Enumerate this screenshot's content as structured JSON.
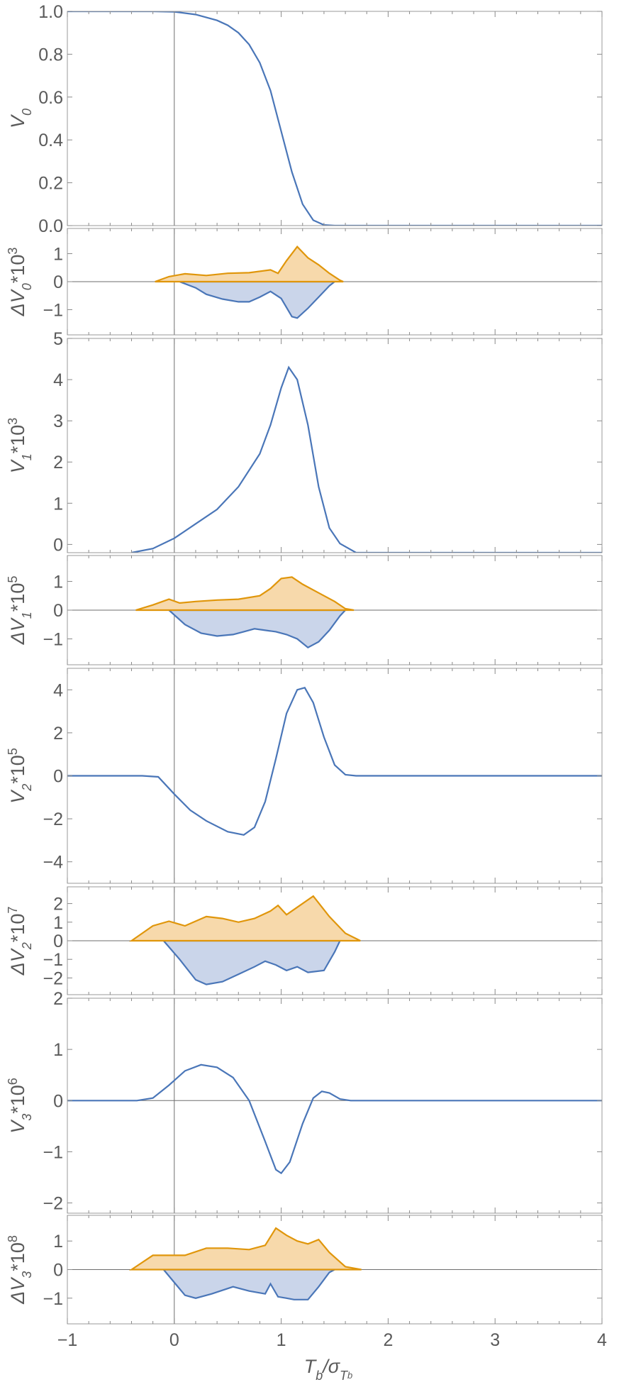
{
  "chart_data": {
    "type": "line",
    "xlabel": "T_b/σ_T_b",
    "xlim": [
      -1,
      4
    ],
    "xticks": [
      "−1",
      "0",
      "1",
      "2",
      "3",
      "4"
    ],
    "vertical_reference_x": 0,
    "colors": {
      "main": "#4a76b8",
      "upper": "#e0960b",
      "upper_fill": "#f7d9ab",
      "lower_fill": "#cad5ea"
    },
    "panels": [
      {
        "kind": "main",
        "ylabel": {
          "base": "V",
          "sub": "0",
          "mult": "",
          "exp": ""
        },
        "ylim": [
          0,
          1
        ],
        "yticks": [
          {
            "v": 0,
            "t": "0.0"
          },
          {
            "v": 0.2,
            "t": "0.2"
          },
          {
            "v": 0.4,
            "t": "0.4"
          },
          {
            "v": 0.6,
            "t": "0.6"
          },
          {
            "v": 0.8,
            "t": "0.8"
          },
          {
            "v": 1.0,
            "t": "1.0"
          }
        ],
        "zero_line": false,
        "series": [
          {
            "name": "V0",
            "points": [
              [
                -1,
                1
              ],
              [
                -0.5,
                1
              ],
              [
                -0.2,
                1
              ],
              [
                0,
                0.998
              ],
              [
                0.2,
                0.985
              ],
              [
                0.4,
                0.958
              ],
              [
                0.5,
                0.935
              ],
              [
                0.6,
                0.9
              ],
              [
                0.7,
                0.845
              ],
              [
                0.8,
                0.76
              ],
              [
                0.9,
                0.63
              ],
              [
                1.0,
                0.44
              ],
              [
                1.1,
                0.25
              ],
              [
                1.2,
                0.1
              ],
              [
                1.3,
                0.025
              ],
              [
                1.4,
                0.003
              ],
              [
                1.5,
                0
              ],
              [
                2,
                0
              ],
              [
                4,
                0
              ]
            ]
          }
        ]
      },
      {
        "kind": "delta",
        "ylabel": {
          "base": "ΔV",
          "sub": "0",
          "mult": "*10",
          "exp": "3"
        },
        "ylim": [
          -1.9,
          1.9
        ],
        "yticks": [
          {
            "v": -1,
            "t": "−1"
          },
          {
            "v": 0,
            "t": "0"
          },
          {
            "v": 1,
            "t": "1"
          }
        ],
        "zero_line": true,
        "upper": [
          [
            -0.18,
            0
          ],
          [
            -0.05,
            0.18
          ],
          [
            0.1,
            0.28
          ],
          [
            0.3,
            0.22
          ],
          [
            0.5,
            0.3
          ],
          [
            0.7,
            0.32
          ],
          [
            0.9,
            0.42
          ],
          [
            0.97,
            0.3
          ],
          [
            1.05,
            0.75
          ],
          [
            1.15,
            1.25
          ],
          [
            1.25,
            0.85
          ],
          [
            1.35,
            0.6
          ],
          [
            1.45,
            0.3
          ],
          [
            1.55,
            0.05
          ],
          [
            1.58,
            0
          ]
        ],
        "lower": [
          [
            0.05,
            0
          ],
          [
            0.2,
            -0.22
          ],
          [
            0.3,
            -0.45
          ],
          [
            0.45,
            -0.62
          ],
          [
            0.6,
            -0.72
          ],
          [
            0.7,
            -0.72
          ],
          [
            0.8,
            -0.55
          ],
          [
            0.9,
            -0.35
          ],
          [
            1.0,
            -0.6
          ],
          [
            1.1,
            -1.25
          ],
          [
            1.15,
            -1.3
          ],
          [
            1.25,
            -0.95
          ],
          [
            1.35,
            -0.55
          ],
          [
            1.45,
            -0.15
          ],
          [
            1.5,
            0
          ]
        ]
      },
      {
        "kind": "main",
        "ylabel": {
          "base": "V",
          "sub": "1",
          "mult": "*10",
          "exp": "3"
        },
        "ylim": [
          -0.2,
          5
        ],
        "yticks": [
          {
            "v": 0,
            "t": "0"
          },
          {
            "v": 1,
            "t": "1"
          },
          {
            "v": 2,
            "t": "2"
          },
          {
            "v": 3,
            "t": "3"
          },
          {
            "v": 4,
            "t": "4"
          },
          {
            "v": 5,
            "t": "5"
          }
        ],
        "zero_line": false,
        "series": [
          {
            "name": "V1",
            "points": [
              [
                -0.4,
                -0.2
              ],
              [
                -0.2,
                -0.1
              ],
              [
                0,
                0.15
              ],
              [
                0.2,
                0.5
              ],
              [
                0.4,
                0.85
              ],
              [
                0.6,
                1.4
              ],
              [
                0.8,
                2.2
              ],
              [
                0.9,
                2.9
              ],
              [
                1.0,
                3.8
              ],
              [
                1.07,
                4.3
              ],
              [
                1.15,
                4.0
              ],
              [
                1.25,
                2.9
              ],
              [
                1.35,
                1.4
              ],
              [
                1.45,
                0.4
              ],
              [
                1.55,
                0.02
              ],
              [
                1.7,
                -0.2
              ],
              [
                4,
                -0.2
              ]
            ]
          }
        ]
      },
      {
        "kind": "delta",
        "ylabel": {
          "base": "ΔV",
          "sub": "1",
          "mult": "*10",
          "exp": "5"
        },
        "ylim": [
          -1.9,
          1.9
        ],
        "yticks": [
          {
            "v": -1,
            "t": "−1"
          },
          {
            "v": 0,
            "t": "0"
          },
          {
            "v": 1,
            "t": "1"
          }
        ],
        "zero_line": true,
        "upper": [
          [
            -0.36,
            0
          ],
          [
            -0.2,
            0.18
          ],
          [
            -0.05,
            0.38
          ],
          [
            0.05,
            0.25
          ],
          [
            0.2,
            0.3
          ],
          [
            0.4,
            0.35
          ],
          [
            0.6,
            0.38
          ],
          [
            0.8,
            0.5
          ],
          [
            0.9,
            0.75
          ],
          [
            1.0,
            1.1
          ],
          [
            1.1,
            1.15
          ],
          [
            1.2,
            0.9
          ],
          [
            1.35,
            0.6
          ],
          [
            1.5,
            0.3
          ],
          [
            1.6,
            0.05
          ],
          [
            1.68,
            0
          ]
        ],
        "lower": [
          [
            -0.05,
            0
          ],
          [
            0.1,
            -0.5
          ],
          [
            0.25,
            -0.8
          ],
          [
            0.4,
            -0.9
          ],
          [
            0.55,
            -0.85
          ],
          [
            0.65,
            -0.75
          ],
          [
            0.75,
            -0.65
          ],
          [
            0.85,
            -0.7
          ],
          [
            0.95,
            -0.75
          ],
          [
            1.05,
            -0.85
          ],
          [
            1.15,
            -1.0
          ],
          [
            1.25,
            -1.3
          ],
          [
            1.35,
            -1.1
          ],
          [
            1.45,
            -0.7
          ],
          [
            1.55,
            -0.2
          ],
          [
            1.6,
            0
          ]
        ]
      },
      {
        "kind": "main",
        "ylabel": {
          "base": "V",
          "sub": "2",
          "mult": "*10",
          "exp": "5"
        },
        "ylim": [
          -5,
          5
        ],
        "yticks": [
          {
            "v": -4,
            "t": "−4"
          },
          {
            "v": -2,
            "t": "−2"
          },
          {
            "v": 0,
            "t": "0"
          },
          {
            "v": 2,
            "t": "2"
          },
          {
            "v": 4,
            "t": "4"
          }
        ],
        "zero_line": false,
        "series": [
          {
            "name": "V2",
            "points": [
              [
                -1,
                0
              ],
              [
                -0.3,
                0
              ],
              [
                -0.15,
                -0.05
              ],
              [
                0,
                -0.85
              ],
              [
                0.15,
                -1.6
              ],
              [
                0.3,
                -2.1
              ],
              [
                0.5,
                -2.6
              ],
              [
                0.65,
                -2.75
              ],
              [
                0.75,
                -2.4
              ],
              [
                0.85,
                -1.2
              ],
              [
                0.95,
                0.8
              ],
              [
                1.05,
                2.9
              ],
              [
                1.15,
                4.0
              ],
              [
                1.22,
                4.1
              ],
              [
                1.3,
                3.4
              ],
              [
                1.4,
                1.8
              ],
              [
                1.5,
                0.5
              ],
              [
                1.6,
                0.05
              ],
              [
                1.7,
                0
              ],
              [
                4,
                0
              ]
            ]
          }
        ]
      },
      {
        "kind": "delta",
        "ylabel": {
          "base": "ΔV",
          "sub": "2",
          "mult": "*10",
          "exp": "7"
        },
        "ylim": [
          -2.9,
          2.9
        ],
        "yticks": [
          {
            "v": -2,
            "t": "−2"
          },
          {
            "v": -1,
            "t": "−1"
          },
          {
            "v": 0,
            "t": "0"
          },
          {
            "v": 1,
            "t": "1"
          },
          {
            "v": 2,
            "t": "2"
          }
        ],
        "zero_line": true,
        "upper": [
          [
            -0.4,
            0
          ],
          [
            -0.2,
            0.8
          ],
          [
            -0.05,
            1.05
          ],
          [
            0.1,
            0.8
          ],
          [
            0.3,
            1.3
          ],
          [
            0.45,
            1.2
          ],
          [
            0.6,
            1.0
          ],
          [
            0.75,
            1.2
          ],
          [
            0.9,
            1.6
          ],
          [
            0.97,
            1.9
          ],
          [
            1.05,
            1.4
          ],
          [
            1.15,
            1.8
          ],
          [
            1.3,
            2.4
          ],
          [
            1.45,
            1.3
          ],
          [
            1.6,
            0.4
          ],
          [
            1.74,
            0
          ]
        ],
        "lower": [
          [
            -0.1,
            0
          ],
          [
            0.05,
            -1.0
          ],
          [
            0.2,
            -2.1
          ],
          [
            0.3,
            -2.35
          ],
          [
            0.45,
            -2.2
          ],
          [
            0.6,
            -1.8
          ],
          [
            0.75,
            -1.4
          ],
          [
            0.85,
            -1.1
          ],
          [
            0.95,
            -1.3
          ],
          [
            1.05,
            -1.6
          ],
          [
            1.15,
            -1.4
          ],
          [
            1.25,
            -1.7
          ],
          [
            1.4,
            -1.6
          ],
          [
            1.5,
            -0.6
          ],
          [
            1.55,
            0
          ]
        ]
      },
      {
        "kind": "main",
        "ylabel": {
          "base": "V",
          "sub": "3",
          "mult": "*10",
          "exp": "6"
        },
        "ylim": [
          -2.2,
          2
        ],
        "yticks": [
          {
            "v": -2,
            "t": "−2"
          },
          {
            "v": -1,
            "t": "−1"
          },
          {
            "v": 0,
            "t": "0"
          },
          {
            "v": 1,
            "t": "1"
          },
          {
            "v": 2,
            "t": "2"
          }
        ],
        "zero_line": true,
        "series": [
          {
            "name": "V3",
            "points": [
              [
                -1,
                0
              ],
              [
                -0.35,
                0
              ],
              [
                -0.2,
                0.05
              ],
              [
                -0.05,
                0.3
              ],
              [
                0.1,
                0.58
              ],
              [
                0.25,
                0.7
              ],
              [
                0.4,
                0.65
              ],
              [
                0.55,
                0.45
              ],
              [
                0.7,
                0.0
              ],
              [
                0.85,
                -0.8
              ],
              [
                0.95,
                -1.35
              ],
              [
                1.0,
                -1.42
              ],
              [
                1.08,
                -1.2
              ],
              [
                1.2,
                -0.45
              ],
              [
                1.3,
                0.05
              ],
              [
                1.38,
                0.18
              ],
              [
                1.45,
                0.15
              ],
              [
                1.55,
                0.03
              ],
              [
                1.65,
                0
              ],
              [
                4,
                0
              ]
            ]
          }
        ]
      },
      {
        "kind": "delta",
        "ylabel": {
          "base": "ΔV",
          "sub": "3",
          "mult": "*10",
          "exp": "8"
        },
        "ylim": [
          -1.9,
          1.9
        ],
        "yticks": [
          {
            "v": -1,
            "t": "−1"
          },
          {
            "v": 0,
            "t": "0"
          },
          {
            "v": 1,
            "t": "1"
          }
        ],
        "zero_line": true,
        "upper": [
          [
            -0.4,
            0
          ],
          [
            -0.2,
            0.5
          ],
          [
            -0.05,
            0.5
          ],
          [
            0.1,
            0.5
          ],
          [
            0.3,
            0.75
          ],
          [
            0.5,
            0.75
          ],
          [
            0.7,
            0.7
          ],
          [
            0.85,
            0.85
          ],
          [
            0.95,
            1.45
          ],
          [
            1.05,
            1.2
          ],
          [
            1.15,
            1.0
          ],
          [
            1.25,
            0.9
          ],
          [
            1.35,
            1.05
          ],
          [
            1.45,
            0.6
          ],
          [
            1.6,
            0.1
          ],
          [
            1.75,
            0
          ]
        ],
        "lower": [
          [
            -0.1,
            0
          ],
          [
            0.1,
            -0.9
          ],
          [
            0.2,
            -1.0
          ],
          [
            0.35,
            -0.85
          ],
          [
            0.55,
            -0.6
          ],
          [
            0.7,
            -0.75
          ],
          [
            0.85,
            -0.85
          ],
          [
            0.9,
            -0.5
          ],
          [
            0.97,
            -0.95
          ],
          [
            1.05,
            -1.0
          ],
          [
            1.12,
            -1.05
          ],
          [
            1.25,
            -1.05
          ],
          [
            1.35,
            -0.6
          ],
          [
            1.45,
            -0.1
          ],
          [
            1.5,
            0
          ]
        ]
      }
    ]
  }
}
